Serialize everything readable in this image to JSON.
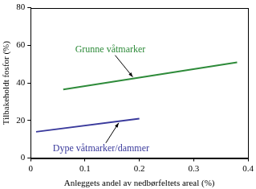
{
  "chart_data": {
    "type": "line",
    "x_label": "Anleggets andel av nedbørfeltets areal (%)",
    "y_label": "Tilbakeholdt fosfor (%)",
    "xlim": [
      0,
      0.4
    ],
    "xticks": [
      0,
      0.1,
      0.2,
      0.3,
      0.4
    ],
    "ylim": [
      0,
      80
    ],
    "yticks": [
      0,
      20,
      40,
      60,
      80
    ],
    "grid": false,
    "series": [
      {
        "name": "Grunne våtmarker",
        "color": "#2e8b3a",
        "x": [
          0.06,
          0.38
        ],
        "values": [
          36.5,
          51
        ]
      },
      {
        "name": "Dype våtmarker/dammer",
        "color": "#3a3a9c",
        "x": [
          0.01,
          0.2
        ],
        "values": [
          14,
          21
        ]
      }
    ]
  }
}
